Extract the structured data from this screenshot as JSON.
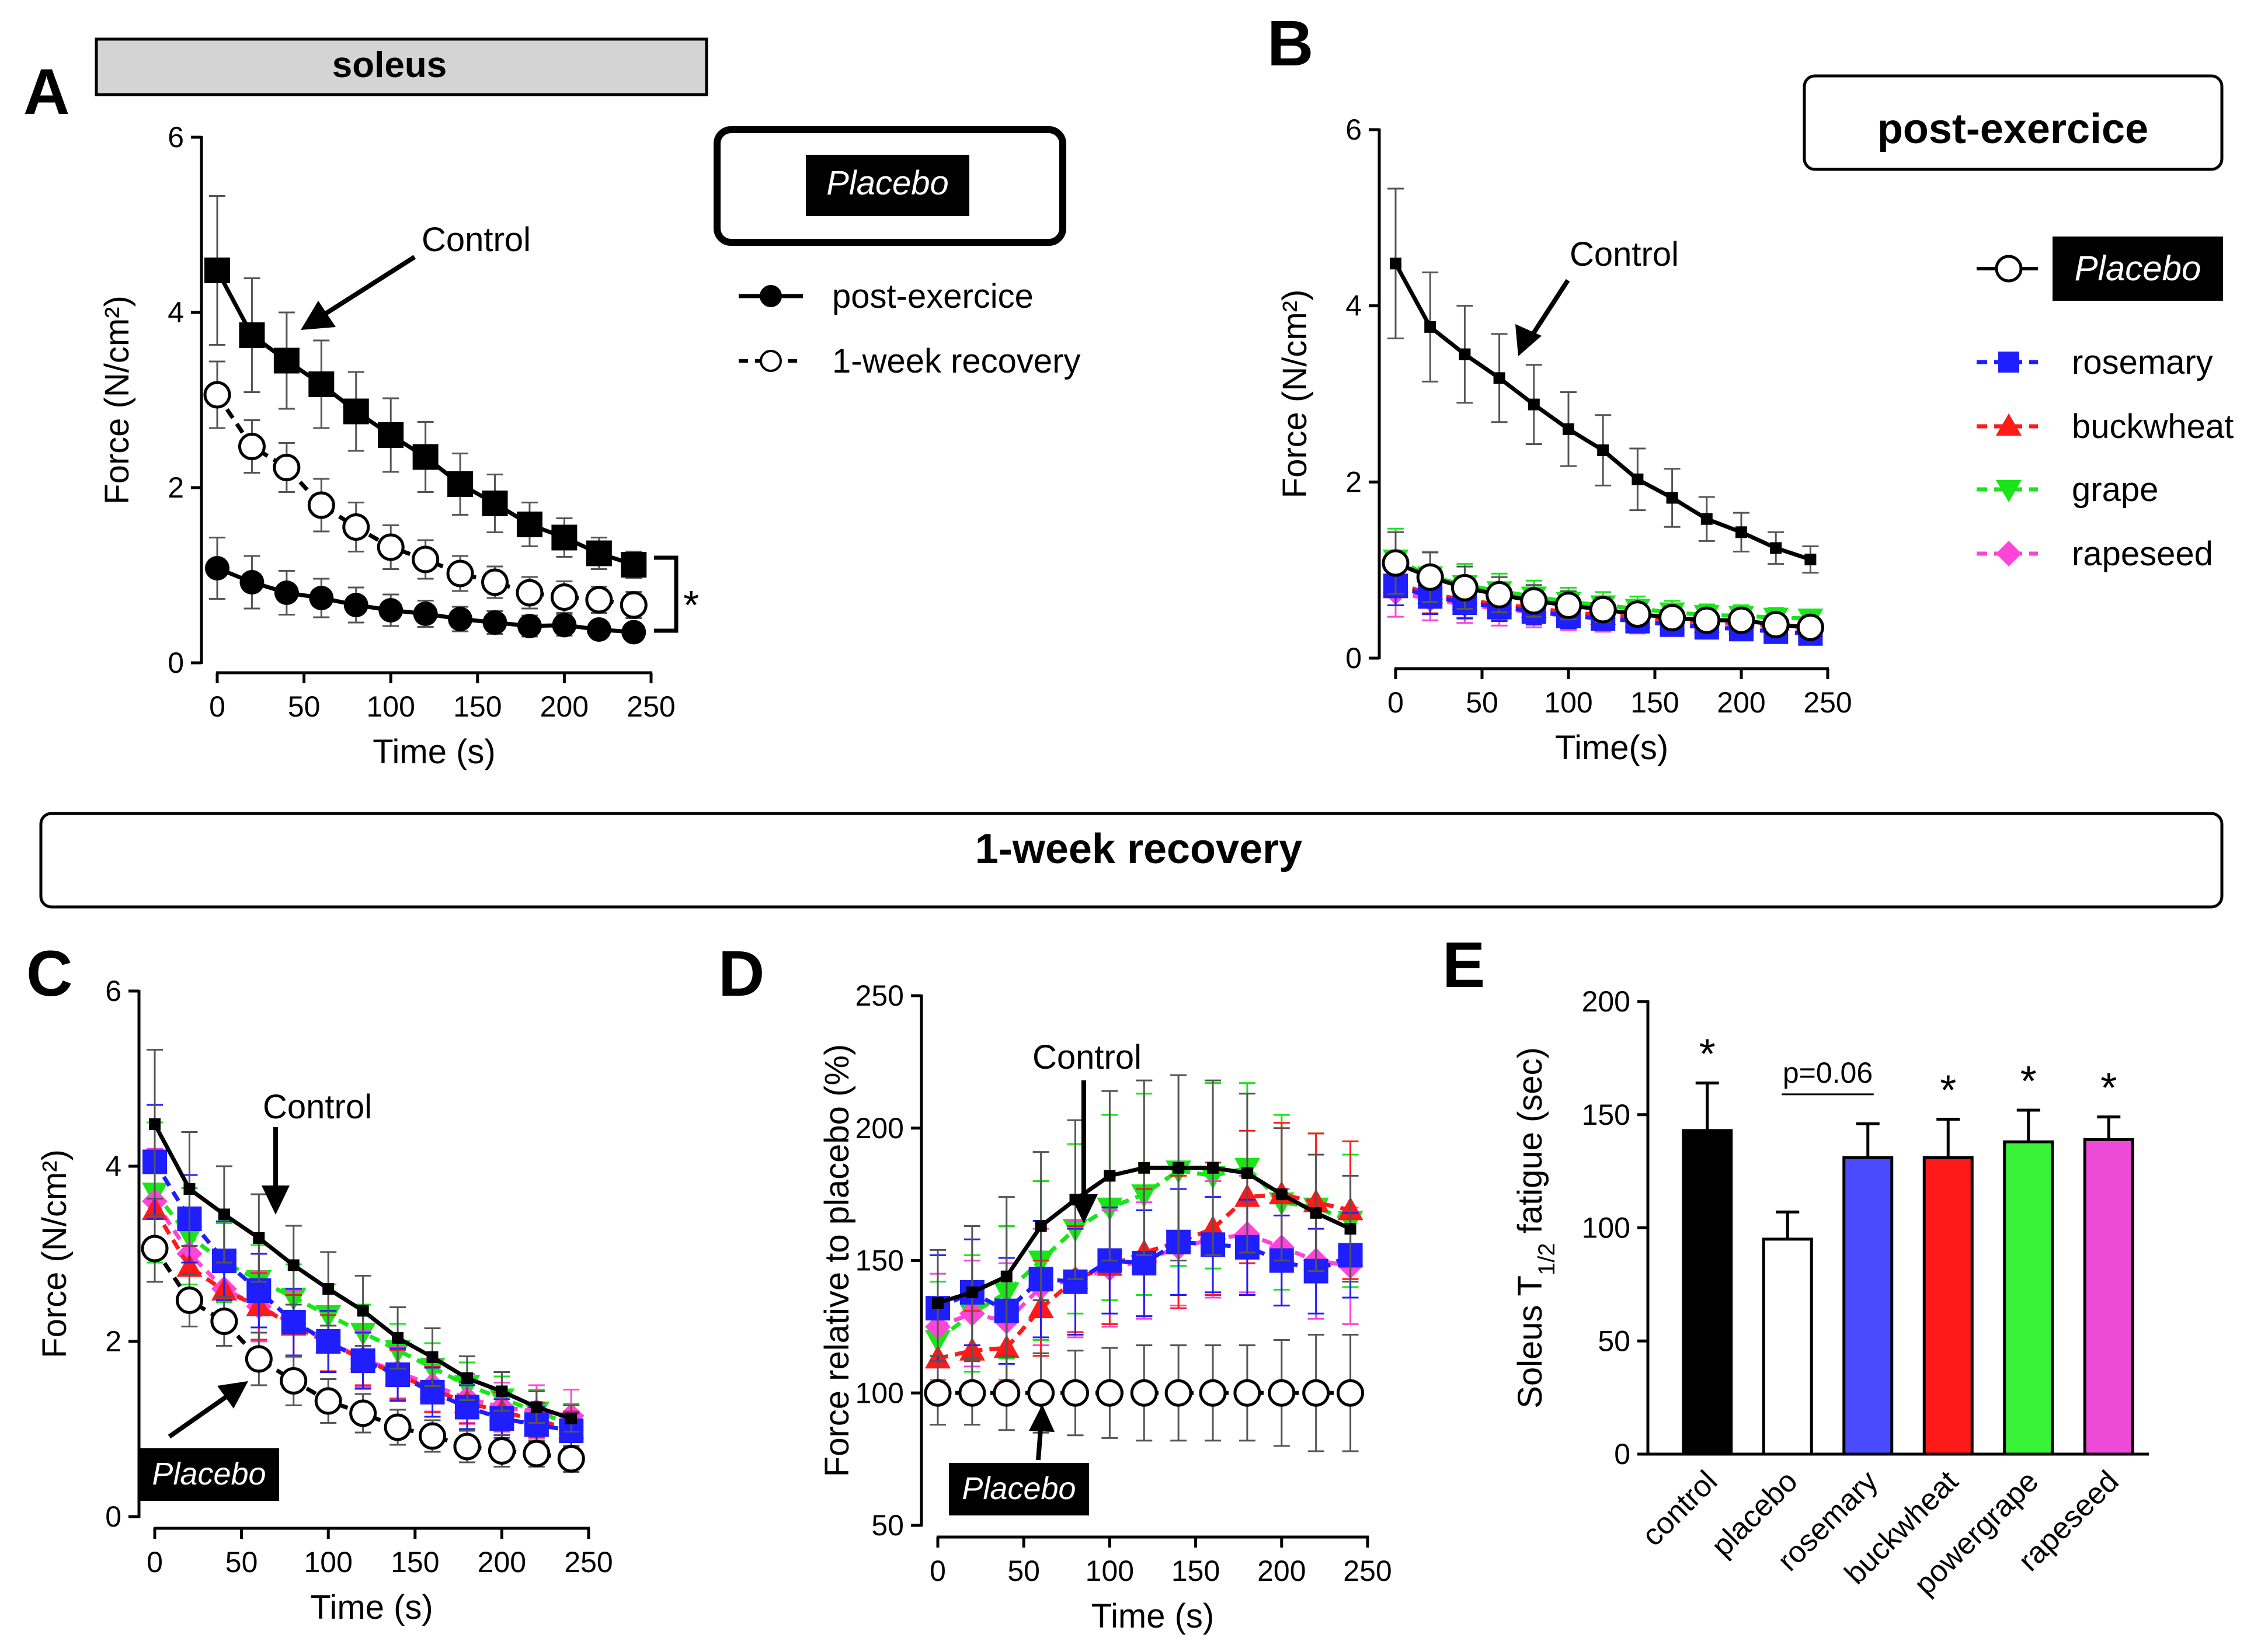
{
  "panel_labels": {
    "a": "A",
    "b": "B",
    "c": "C",
    "d": "D",
    "e": "E"
  },
  "headers": {
    "soleus": "soleus",
    "post_exercise": "post-exercice",
    "recovery": "1-week recovery"
  },
  "colors": {
    "control": "#000000",
    "placebo": "#ffffff",
    "rosemary": "#1e1eff",
    "buckwheat": "#ff1a1a",
    "grape": "#19e619",
    "rapeseed": "#ff44d8"
  },
  "chart_data": [
    {
      "id": "A",
      "type": "line",
      "title": "soleus",
      "xlabel": "Time (s)",
      "ylabel": "Force (N/cm²)",
      "xlim": [
        0,
        250
      ],
      "ylim": [
        0,
        6
      ],
      "xticks": [
        "0",
        "50",
        "100",
        "150",
        "200",
        "250"
      ],
      "yticks": [
        "0",
        "2",
        "4",
        "6"
      ],
      "x": [
        0,
        20,
        40,
        60,
        80,
        100,
        120,
        140,
        160,
        180,
        200,
        220,
        240
      ],
      "series": [
        {
          "name": "Control",
          "marker": "square-filled",
          "style": "solid",
          "color": "#000000",
          "values": [
            4.48,
            3.74,
            3.45,
            3.18,
            2.87,
            2.6,
            2.35,
            2.04,
            1.82,
            1.58,
            1.43,
            1.25,
            1.12
          ],
          "errors": [
            0.85,
            0.65,
            0.55,
            0.5,
            0.45,
            0.42,
            0.4,
            0.35,
            0.33,
            0.25,
            0.22,
            0.18,
            0.15
          ]
        },
        {
          "name": "1-week recovery",
          "marker": "circle-open",
          "style": "dashed",
          "color": "#000000",
          "values": [
            3.06,
            2.47,
            2.23,
            1.8,
            1.55,
            1.32,
            1.18,
            1.02,
            0.92,
            0.8,
            0.75,
            0.72,
            0.66
          ],
          "errors": [
            0.38,
            0.3,
            0.28,
            0.3,
            0.28,
            0.25,
            0.22,
            0.2,
            0.18,
            0.18,
            0.18,
            0.15,
            0.15
          ]
        },
        {
          "name": "post-exercice",
          "marker": "circle-filled",
          "style": "solid",
          "color": "#000000",
          "values": [
            1.08,
            0.92,
            0.8,
            0.74,
            0.66,
            0.6,
            0.56,
            0.5,
            0.46,
            0.42,
            0.43,
            0.38,
            0.35
          ],
          "errors": [
            0.35,
            0.3,
            0.25,
            0.22,
            0.2,
            0.18,
            0.15,
            0.14,
            0.13,
            0.12,
            0.12,
            0.08,
            0.06
          ]
        }
      ],
      "legend": {
        "title": "Placebo",
        "items": [
          "post-exercice",
          "1-week recovery"
        ]
      },
      "annotations": {
        "arrow_label": "Control",
        "significance": "*"
      }
    },
    {
      "id": "B",
      "type": "line",
      "title": "post-exercice",
      "xlabel": "Time(s)",
      "ylabel": "Force (N/cm²)",
      "xlim": [
        0,
        250
      ],
      "ylim": [
        0,
        6
      ],
      "xticks": [
        "0",
        "50",
        "100",
        "150",
        "200",
        "250"
      ],
      "yticks": [
        "0",
        "2",
        "4",
        "6"
      ],
      "x": [
        0,
        20,
        40,
        60,
        80,
        100,
        120,
        140,
        160,
        180,
        200,
        220,
        240
      ],
      "series": [
        {
          "name": "Control",
          "marker": "square-small",
          "style": "solid",
          "color": "#000000",
          "values": [
            4.48,
            3.76,
            3.45,
            3.18,
            2.88,
            2.6,
            2.36,
            2.03,
            1.82,
            1.58,
            1.43,
            1.25,
            1.12
          ],
          "errors": [
            0.85,
            0.62,
            0.55,
            0.5,
            0.45,
            0.42,
            0.4,
            0.35,
            0.33,
            0.25,
            0.22,
            0.18,
            0.15
          ]
        },
        {
          "name": "grape",
          "marker": "triangle-down",
          "style": "dashed",
          "color": "#19e619",
          "values": [
            1.12,
            0.93,
            0.83,
            0.76,
            0.7,
            0.64,
            0.6,
            0.56,
            0.52,
            0.49,
            0.48,
            0.46,
            0.45
          ],
          "errors": [
            0.35,
            0.28,
            0.24,
            0.2,
            0.18,
            0.16,
            0.15,
            0.14,
            0.13,
            0.12,
            0.12,
            0.11,
            0.1
          ]
        },
        {
          "name": "buckwheat",
          "marker": "triangle-up",
          "style": "dashed",
          "color": "#ff1a1a",
          "values": [
            0.85,
            0.73,
            0.66,
            0.61,
            0.57,
            0.52,
            0.49,
            0.46,
            0.43,
            0.4,
            0.39,
            0.37,
            0.35
          ],
          "errors": [
            0.25,
            0.22,
            0.2,
            0.18,
            0.16,
            0.15,
            0.14,
            0.13,
            0.12,
            0.11,
            0.1,
            0.1,
            0.09
          ]
        },
        {
          "name": "rapeseed",
          "marker": "diamond",
          "style": "dashed",
          "color": "#ff44d8",
          "values": [
            0.75,
            0.67,
            0.61,
            0.56,
            0.52,
            0.48,
            0.45,
            0.42,
            0.4,
            0.37,
            0.36,
            0.34,
            0.32
          ],
          "errors": [
            0.28,
            0.24,
            0.21,
            0.19,
            0.17,
            0.16,
            0.15,
            0.14,
            0.13,
            0.12,
            0.11,
            0.1,
            0.1
          ]
        },
        {
          "name": "rosemary",
          "marker": "square",
          "style": "dashed",
          "color": "#1e1eff",
          "values": [
            0.82,
            0.7,
            0.63,
            0.58,
            0.53,
            0.48,
            0.45,
            0.42,
            0.38,
            0.35,
            0.33,
            0.3,
            0.28
          ],
          "errors": [
            0.22,
            0.2,
            0.18,
            0.16,
            0.15,
            0.14,
            0.13,
            0.12,
            0.11,
            0.1,
            0.09,
            0.08,
            0.08
          ]
        },
        {
          "name": "Placebo",
          "marker": "circle-open",
          "style": "solid",
          "color": "#000000",
          "values": [
            1.08,
            0.92,
            0.8,
            0.72,
            0.65,
            0.6,
            0.55,
            0.5,
            0.46,
            0.43,
            0.43,
            0.38,
            0.35
          ],
          "errors": [
            0.35,
            0.28,
            0.24,
            0.2,
            0.18,
            0.16,
            0.14,
            0.12,
            0.11,
            0.1,
            0.1,
            0.07,
            0.06
          ]
        }
      ],
      "legend": {
        "items": [
          "Placebo",
          "rosemary",
          "buckwheat",
          "grape",
          "rapeseed"
        ]
      },
      "annotations": {
        "arrow_label": "Control"
      }
    },
    {
      "id": "C",
      "type": "line",
      "title": "1-week recovery",
      "xlabel": "Time (s)",
      "ylabel": "Force (N/cm²)",
      "xlim": [
        0,
        250
      ],
      "ylim": [
        0,
        6
      ],
      "xticks": [
        "0",
        "50",
        "100",
        "150",
        "200",
        "250"
      ],
      "yticks": [
        "0",
        "2",
        "4",
        "6"
      ],
      "x": [
        0,
        20,
        40,
        60,
        80,
        100,
        120,
        140,
        160,
        180,
        200,
        220,
        240
      ],
      "series": [
        {
          "name": "grape",
          "marker": "triangle-down",
          "style": "dashed",
          "color": "#19e619",
          "values": [
            3.7,
            3.2,
            2.9,
            2.7,
            2.5,
            2.3,
            2.1,
            1.9,
            1.7,
            1.5,
            1.35,
            1.2,
            1.05
          ],
          "errors": [
            0.8,
            0.55,
            0.45,
            0.4,
            0.38,
            0.35,
            0.32,
            0.3,
            0.28,
            0.26,
            0.25,
            0.25,
            0.24
          ]
        },
        {
          "name": "rapeseed",
          "marker": "diamond",
          "style": "dashed",
          "color": "#ff44d8",
          "values": [
            3.6,
            3.0,
            2.6,
            2.4,
            2.2,
            2.0,
            1.8,
            1.65,
            1.5,
            1.35,
            1.25,
            1.2,
            1.15
          ],
          "errors": [
            0.6,
            0.5,
            0.45,
            0.4,
            0.38,
            0.35,
            0.32,
            0.3,
            0.3,
            0.28,
            0.28,
            0.3,
            0.3
          ]
        },
        {
          "name": "buckwheat",
          "marker": "triangle-up",
          "style": "dashed",
          "color": "#ff1a1a",
          "values": [
            3.5,
            2.85,
            2.58,
            2.4,
            2.18,
            1.98,
            1.8,
            1.62,
            1.45,
            1.3,
            1.2,
            1.1,
            1.0
          ],
          "errors": [
            0.55,
            0.45,
            0.4,
            0.38,
            0.35,
            0.32,
            0.3,
            0.28,
            0.26,
            0.24,
            0.22,
            0.2,
            0.2
          ]
        },
        {
          "name": "rosemary",
          "marker": "square",
          "style": "dashed",
          "color": "#1e1eff",
          "values": [
            4.05,
            3.4,
            2.92,
            2.58,
            2.22,
            2.0,
            1.78,
            1.62,
            1.42,
            1.25,
            1.12,
            1.05,
            0.98
          ],
          "errors": [
            0.65,
            0.5,
            0.45,
            0.42,
            0.38,
            0.35,
            0.32,
            0.3,
            0.28,
            0.25,
            0.22,
            0.2,
            0.2
          ]
        },
        {
          "name": "Control",
          "marker": "square-small",
          "style": "solid",
          "color": "#000000",
          "values": [
            4.48,
            3.74,
            3.45,
            3.18,
            2.87,
            2.6,
            2.35,
            2.04,
            1.82,
            1.58,
            1.43,
            1.25,
            1.12
          ],
          "errors": [
            0.85,
            0.65,
            0.55,
            0.5,
            0.45,
            0.42,
            0.4,
            0.35,
            0.33,
            0.25,
            0.22,
            0.18,
            0.15
          ]
        },
        {
          "name": "Placebo",
          "marker": "circle-open",
          "style": "dashed",
          "color": "#000000",
          "values": [
            3.06,
            2.47,
            2.23,
            1.8,
            1.55,
            1.32,
            1.18,
            1.02,
            0.92,
            0.8,
            0.75,
            0.72,
            0.66
          ],
          "errors": [
            0.38,
            0.3,
            0.28,
            0.3,
            0.28,
            0.25,
            0.22,
            0.2,
            0.18,
            0.18,
            0.18,
            0.15,
            0.15
          ]
        }
      ],
      "annotations": {
        "arrow_label": "Control",
        "placebo_label": "Placebo"
      }
    },
    {
      "id": "D",
      "type": "line",
      "xlabel": "Time (s)",
      "ylabel": "Force relative to placebo (%)",
      "xlim": [
        0,
        250
      ],
      "ylim": [
        50,
        250
      ],
      "xticks": [
        "0",
        "50",
        "100",
        "150",
        "200",
        "250"
      ],
      "yticks": [
        "50",
        "100",
        "150",
        "200",
        "250"
      ],
      "x": [
        0,
        20,
        40,
        60,
        80,
        100,
        120,
        140,
        160,
        180,
        200,
        220,
        240
      ],
      "series": [
        {
          "name": "grape",
          "marker": "triangle-down",
          "style": "dashed",
          "color": "#19e619",
          "values": [
            120,
            130,
            138,
            150,
            162,
            170,
            175,
            184,
            182,
            185,
            172,
            170,
            165
          ],
          "errors": [
            22,
            22,
            25,
            30,
            32,
            35,
            38,
            36,
            35,
            32,
            33,
            28,
            25
          ]
        },
        {
          "name": "rapeseed",
          "marker": "diamond",
          "style": "dashed",
          "color": "#ff44d8",
          "values": [
            125,
            130,
            127,
            140,
            143,
            147,
            150,
            155,
            158,
            160,
            155,
            150,
            148
          ],
          "errors": [
            20,
            20,
            22,
            22,
            22,
            22,
            22,
            22,
            22,
            22,
            22,
            22,
            22
          ]
        },
        {
          "name": "buckwheat",
          "marker": "triangle-up",
          "style": "dashed",
          "color": "#ff1a1a",
          "values": [
            113,
            116,
            117,
            132,
            143,
            148,
            153,
            157,
            162,
            174,
            175,
            172,
            169
          ],
          "errors": [
            15,
            15,
            16,
            18,
            20,
            22,
            24,
            25,
            25,
            25,
            27,
            26,
            26
          ]
        },
        {
          "name": "rosemary",
          "marker": "square",
          "style": "dashed",
          "color": "#1e1eff",
          "values": [
            132,
            138,
            131,
            143,
            142,
            150,
            149,
            157,
            156,
            155,
            150,
            146,
            152
          ],
          "errors": [
            20,
            20,
            20,
            22,
            20,
            20,
            20,
            20,
            18,
            18,
            17,
            16,
            16
          ]
        },
        {
          "name": "Control",
          "marker": "square-small",
          "style": "solid",
          "color": "#000000",
          "values": [
            134,
            138,
            144,
            163,
            173,
            182,
            185,
            185,
            185,
            183,
            175,
            168,
            162
          ],
          "errors": [
            20,
            25,
            30,
            28,
            30,
            32,
            33,
            35,
            33,
            30,
            25,
            22,
            20
          ]
        },
        {
          "name": "Placebo",
          "marker": "circle-open",
          "style": "dashed",
          "color": "#000000",
          "values": [
            100,
            100,
            100,
            100,
            100,
            100,
            100,
            100,
            100,
            100,
            100,
            100,
            100
          ],
          "errors": [
            12,
            12,
            14,
            15,
            16,
            17,
            18,
            18,
            18,
            18,
            20,
            22,
            22
          ]
        }
      ],
      "annotations": {
        "arrow_label": "Control",
        "placebo_label": "Placebo"
      }
    },
    {
      "id": "E",
      "type": "bar",
      "xlabel": "",
      "ylabel_main": "Soleus T",
      "ylabel_sub": "1/2",
      "ylabel_tail": " fatigue (sec)",
      "ylim": [
        0,
        200
      ],
      "yticks": [
        "0",
        "50",
        "100",
        "150",
        "200"
      ],
      "categories": [
        "control",
        "placebo",
        "rosemary",
        "buckwheat",
        "powergrape",
        "rapeseed"
      ],
      "values": [
        143,
        95,
        131,
        131,
        138,
        139
      ],
      "errors": [
        21,
        12,
        15,
        17,
        14,
        10
      ],
      "colors": [
        "#000000",
        "#ffffff",
        "#4a4aff",
        "#ff1a1a",
        "#38f238",
        "#ee4ad8"
      ],
      "significance": [
        "*",
        "",
        "",
        "*",
        "*",
        "*"
      ],
      "comparison": {
        "label": "p=0.06",
        "from": "placebo",
        "to": "rosemary"
      }
    }
  ]
}
